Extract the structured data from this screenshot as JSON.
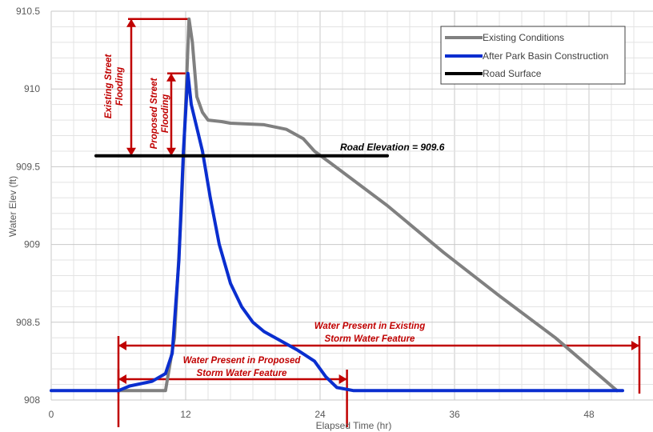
{
  "chart_data": {
    "type": "line",
    "title": "",
    "xlabel": "Elapsed Time (hr)",
    "ylabel": "Water Elev (ft)",
    "xlim": [
      0,
      51
    ],
    "ylim": [
      908,
      910.5
    ],
    "x_ticks": [
      "0",
      "12",
      "24",
      "36",
      "48"
    ],
    "y_ticks": [
      "908",
      "908.5",
      "909",
      "909.5",
      "910",
      "910.5"
    ],
    "grid": "on",
    "legend_position": "top-right",
    "series": [
      {
        "name": "Existing Conditions",
        "color": "#808080",
        "points": [
          [
            6,
            908.06
          ],
          [
            10.2,
            908.06
          ],
          [
            11,
            908.4
          ],
          [
            11.6,
            909.2
          ],
          [
            12,
            909.9
          ],
          [
            12.3,
            910.45
          ],
          [
            12.6,
            910.3
          ],
          [
            13,
            909.95
          ],
          [
            13.5,
            909.85
          ],
          [
            14,
            909.8
          ],
          [
            15.2,
            909.79
          ],
          [
            16,
            909.78
          ],
          [
            19,
            909.77
          ],
          [
            21,
            909.74
          ],
          [
            22.5,
            909.68
          ],
          [
            23.5,
            909.6
          ],
          [
            25,
            909.52
          ],
          [
            30,
            909.25
          ],
          [
            35,
            908.95
          ],
          [
            40,
            908.67
          ],
          [
            45,
            908.4
          ],
          [
            50.5,
            908.06
          ]
        ]
      },
      {
        "name": "After Park Basin Construction",
        "color": "#0a2ecf",
        "points": [
          [
            0,
            908.06
          ],
          [
            6,
            908.06
          ],
          [
            7,
            908.09
          ],
          [
            9,
            908.12
          ],
          [
            10.2,
            908.17
          ],
          [
            10.8,
            908.3
          ],
          [
            11.4,
            908.9
          ],
          [
            11.8,
            909.6
          ],
          [
            12.2,
            910.1
          ],
          [
            12.5,
            909.9
          ],
          [
            13,
            909.75
          ],
          [
            13.5,
            909.6
          ],
          [
            14.2,
            909.3
          ],
          [
            15,
            909
          ],
          [
            16,
            908.75
          ],
          [
            17,
            908.6
          ],
          [
            18,
            908.5
          ],
          [
            19,
            908.44
          ],
          [
            20.5,
            908.38
          ],
          [
            22,
            908.32
          ],
          [
            23.5,
            908.25
          ],
          [
            24.5,
            908.15
          ],
          [
            25.5,
            908.08
          ],
          [
            27,
            908.06
          ],
          [
            51,
            908.06
          ]
        ]
      },
      {
        "name": "Road Surface",
        "color": "#000000",
        "points": [
          [
            4,
            909.57
          ],
          [
            30,
            909.57
          ]
        ]
      }
    ],
    "annotations": {
      "road": "Road Elevation = 909.6",
      "existing_flooding": [
        "Existing Street",
        "Flooding"
      ],
      "proposed_flooding": [
        "Proposed Street",
        "Flooding"
      ],
      "existing_feature": [
        "Water Present in Existing",
        "Storm Water Feature"
      ],
      "proposed_feature": [
        "Water Present in Proposed",
        "Storm Water Feature"
      ]
    },
    "annotation_color": "#c00000"
  }
}
